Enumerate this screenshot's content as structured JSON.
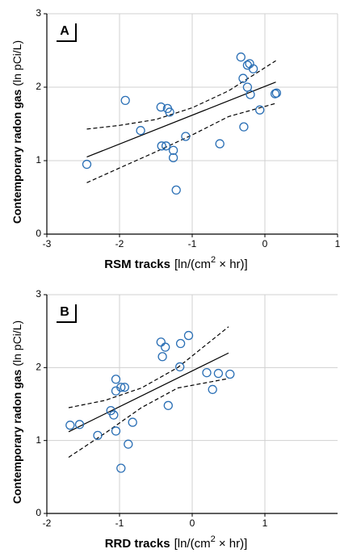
{
  "chart_data": [
    {
      "type": "scatter",
      "panel": "A",
      "xlabel": "RSM tracks",
      "xlabel_unit": "[ln/(cm",
      "xlabel_sup": "2",
      "xlabel_unit_end": " × hr)]",
      "ylabel": "Contemporary radon gas",
      "ylabel_unit": "(ln pCi/L)",
      "x": [
        -2.45,
        -1.92,
        -1.71,
        -1.43,
        -1.34,
        -1.31,
        -1.42,
        -1.36,
        -1.26,
        -1.26,
        -1.09,
        -1.22,
        -0.62,
        -0.29,
        -0.33,
        -0.3,
        -0.24,
        -0.21,
        -0.16,
        -0.24,
        -0.2,
        -0.07,
        0.14,
        0.16
      ],
      "values": [
        0.95,
        1.82,
        1.41,
        1.73,
        1.71,
        1.66,
        1.2,
        1.2,
        1.14,
        1.04,
        1.33,
        0.6,
        1.23,
        1.46,
        2.41,
        2.12,
        2.3,
        2.32,
        2.25,
        2.0,
        1.9,
        1.69,
        1.91,
        1.92
      ],
      "color": "#2a6fb5",
      "lines": [
        {
          "style": "solid",
          "x": [
            -2.45,
            0.15
          ],
          "values": [
            1.05,
            2.07
          ]
        },
        {
          "style": "dashed",
          "x": [
            -2.45,
            -2,
            -1.5,
            -1,
            -0.5,
            0.15
          ],
          "values": [
            1.43,
            1.48,
            1.56,
            1.72,
            1.95,
            2.36
          ]
        },
        {
          "style": "dashed",
          "x": [
            -2.45,
            -2,
            -1.5,
            -1,
            -0.5,
            0.15
          ],
          "values": [
            0.7,
            0.9,
            1.12,
            1.35,
            1.6,
            1.78
          ]
        }
      ],
      "xlim": [
        -3,
        1
      ],
      "ylim": [
        0,
        3
      ],
      "xticks": [
        -3,
        -2,
        -1,
        0,
        1
      ],
      "yticks": [
        0,
        1,
        2,
        3
      ],
      "grid": true
    },
    {
      "type": "scatter",
      "panel": "B",
      "xlabel": "RRD tracks",
      "xlabel_unit": "[ln/(cm",
      "xlabel_sup": "2",
      "xlabel_unit_end": " × hr)]",
      "ylabel": "Contemporary radon gas",
      "ylabel_unit": "(ln pCi/L)",
      "x": [
        -1.68,
        -1.55,
        -1.3,
        -1.12,
        -1.08,
        -1.05,
        -1.05,
        -0.98,
        -0.93,
        -1.05,
        -0.98,
        -0.88,
        -0.82,
        -0.43,
        -0.41,
        -0.37,
        -0.16,
        -0.05,
        -0.17,
        -0.33,
        0.2,
        0.28,
        0.36,
        0.52
      ],
      "values": [
        1.21,
        1.22,
        1.07,
        1.41,
        1.35,
        1.84,
        1.68,
        1.73,
        1.73,
        1.13,
        0.62,
        0.95,
        1.25,
        2.35,
        2.15,
        2.28,
        2.33,
        2.44,
        2.01,
        1.48,
        1.93,
        1.7,
        1.92,
        1.91
      ],
      "color": "#2a6fb5",
      "lines": [
        {
          "style": "solid",
          "x": [
            -1.7,
            0.5
          ],
          "values": [
            1.12,
            2.2
          ]
        },
        {
          "style": "dashed",
          "x": [
            -1.7,
            -1.2,
            -0.7,
            -0.2,
            0.5
          ],
          "values": [
            1.45,
            1.55,
            1.72,
            2.0,
            2.56
          ]
        },
        {
          "style": "dashed",
          "x": [
            -1.7,
            -1.2,
            -0.7,
            -0.2,
            0.5
          ],
          "values": [
            0.77,
            1.1,
            1.45,
            1.72,
            1.85
          ]
        }
      ],
      "xlim": [
        -2,
        2
      ],
      "ylim": [
        0,
        3
      ],
      "xticks": [
        -2,
        -1,
        0,
        1
      ],
      "yticks": [
        0,
        1,
        2,
        3
      ],
      "grid": true
    }
  ]
}
